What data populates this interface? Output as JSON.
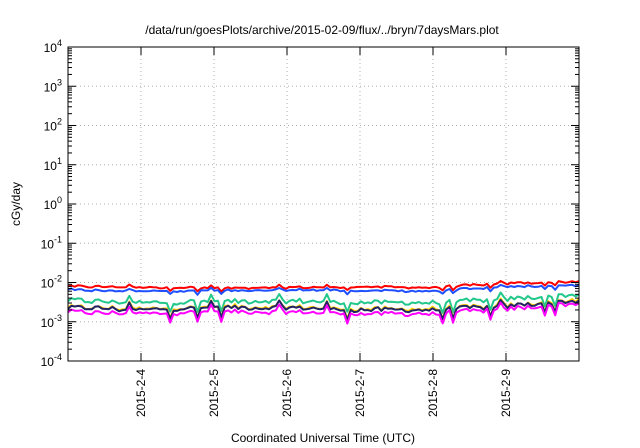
{
  "chart_data": {
    "type": "line",
    "title": "/data/run/goesPlots/archive/2015-02-09/flux/../bryn/7daysMars.plot",
    "xlabel": "Coordinated Universal Time (UTC)",
    "ylabel": "cGy/day",
    "yscale": "log",
    "ylim": [
      0.0001,
      10000
    ],
    "y_ticks": [
      {
        "value": 0.0001,
        "base": "10",
        "exp": "-4"
      },
      {
        "value": 0.001,
        "base": "10",
        "exp": "-3"
      },
      {
        "value": 0.01,
        "base": "10",
        "exp": "-2"
      },
      {
        "value": 0.1,
        "base": "10",
        "exp": "-1"
      },
      {
        "value": 1,
        "base": "10",
        "exp": "0"
      },
      {
        "value": 10,
        "base": "10",
        "exp": "1"
      },
      {
        "value": 100,
        "base": "10",
        "exp": "2"
      },
      {
        "value": 1000,
        "base": "10",
        "exp": "3"
      },
      {
        "value": 10000,
        "base": "10",
        "exp": "4"
      }
    ],
    "xlim": [
      "2015-02-03 00:00",
      "2015-02-10 00:00"
    ],
    "x_tick_labels": [
      "2015-2-4",
      "2015-2-5",
      "2015-2-6",
      "2015-2-7",
      "2015-2-8",
      "2015-2-9"
    ],
    "grid": true,
    "x_days": [
      "2015-02-03",
      "2015-02-04",
      "2015-02-05",
      "2015-02-06",
      "2015-02-07",
      "2015-02-08",
      "2015-02-09",
      "2015-02-10"
    ],
    "series": [
      {
        "color": "#ff0000",
        "values": [
          0.008,
          0.0075,
          0.0072,
          0.0075,
          0.0078,
          0.0075,
          0.0095,
          0.0105
        ]
      },
      {
        "color": "#1f4fff",
        "values": [
          0.0065,
          0.006,
          0.0062,
          0.0065,
          0.0062,
          0.006,
          0.0078,
          0.0085
        ]
      },
      {
        "color": "#22c78a",
        "values": [
          0.0035,
          0.003,
          0.0033,
          0.0034,
          0.0031,
          0.003,
          0.0038,
          0.005
        ]
      },
      {
        "color": "#ffd400",
        "values": [
          0.0024,
          0.0021,
          0.0024,
          0.0024,
          0.0021,
          0.0021,
          0.0026,
          0.0037
        ]
      },
      {
        "color": "#222266",
        "values": [
          0.0023,
          0.002,
          0.0023,
          0.0023,
          0.002,
          0.002,
          0.0025,
          0.0035
        ]
      },
      {
        "color": "#ff00ff",
        "values": [
          0.0018,
          0.0016,
          0.0018,
          0.0018,
          0.0016,
          0.0016,
          0.0021,
          0.003
        ]
      }
    ]
  }
}
